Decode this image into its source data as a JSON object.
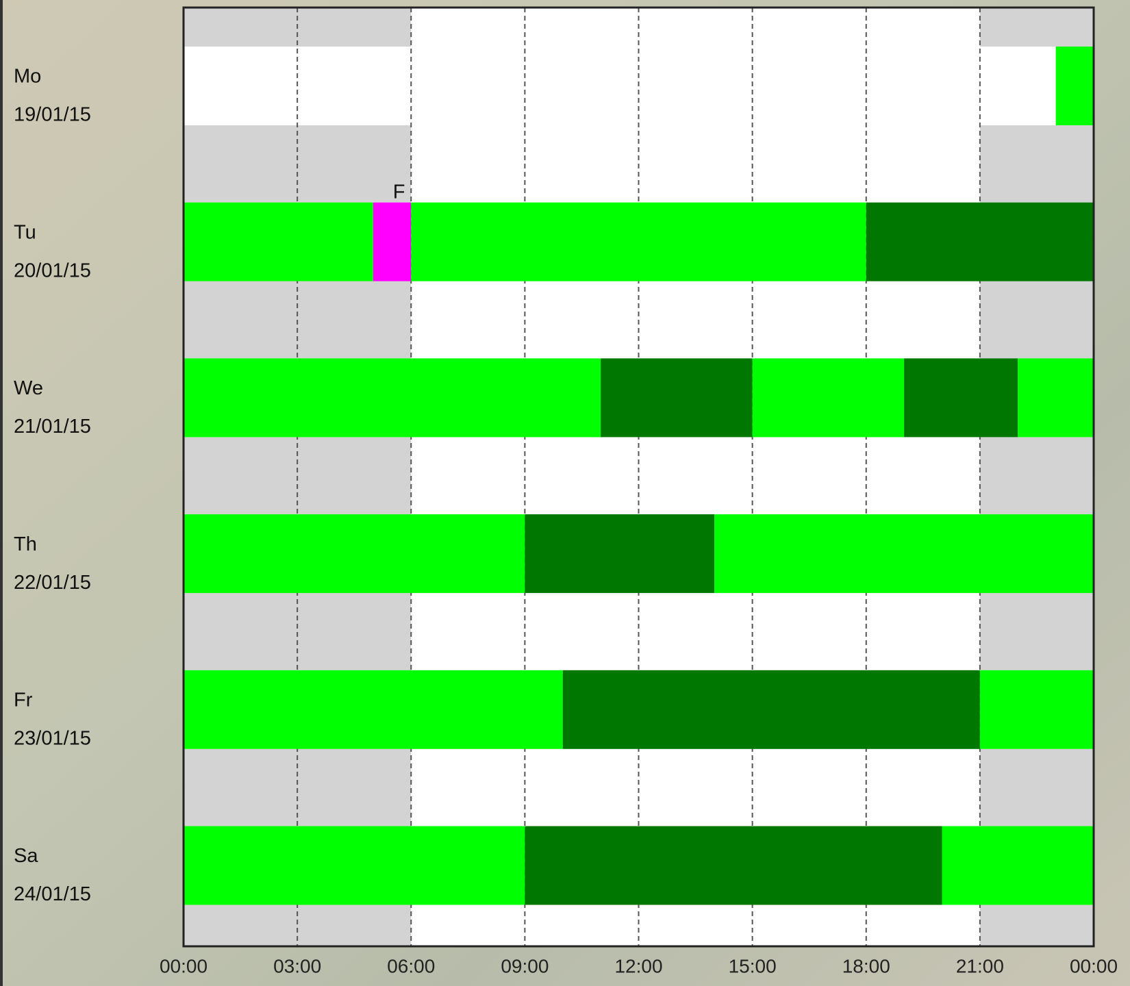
{
  "chart_data": {
    "type": "timeline",
    "xlim": [
      0,
      24
    ],
    "xticks": [
      {
        "value": 0,
        "label": "00:00"
      },
      {
        "value": 3,
        "label": "03:00"
      },
      {
        "value": 6,
        "label": "06:00"
      },
      {
        "value": 9,
        "label": "09:00"
      },
      {
        "value": 12,
        "label": "12:00"
      },
      {
        "value": 15,
        "label": "15:00"
      },
      {
        "value": 18,
        "label": "18:00"
      },
      {
        "value": 21,
        "label": "21:00"
      },
      {
        "value": 24,
        "label": "00:00"
      }
    ],
    "grid": true,
    "shaded_hours": [
      [
        0,
        6
      ],
      [
        21,
        24
      ]
    ],
    "shade_color": "#d3d3d3",
    "rows": [
      {
        "day": "Mo",
        "date": "19/01/15",
        "segments": [
          {
            "start": 23,
            "end": 24,
            "color": "#00ff00"
          }
        ]
      },
      {
        "day": "Tu",
        "date": "20/01/15",
        "segments": [
          {
            "start": 0,
            "end": 5,
            "color": "#00ff00"
          },
          {
            "start": 5,
            "end": 6,
            "color": "#ff00ff",
            "label": "F"
          },
          {
            "start": 6,
            "end": 18,
            "color": "#00ff00"
          },
          {
            "start": 18,
            "end": 24,
            "color": "#007800"
          }
        ]
      },
      {
        "day": "We",
        "date": "21/01/15",
        "segments": [
          {
            "start": 0,
            "end": 11,
            "color": "#00ff00"
          },
          {
            "start": 11,
            "end": 15,
            "color": "#007800"
          },
          {
            "start": 15,
            "end": 19,
            "color": "#00ff00"
          },
          {
            "start": 19,
            "end": 22,
            "color": "#007800"
          },
          {
            "start": 22,
            "end": 24,
            "color": "#00ff00"
          }
        ]
      },
      {
        "day": "Th",
        "date": "22/01/15",
        "segments": [
          {
            "start": 0,
            "end": 9,
            "color": "#00ff00"
          },
          {
            "start": 9,
            "end": 14,
            "color": "#007800"
          },
          {
            "start": 14,
            "end": 24,
            "color": "#00ff00"
          }
        ]
      },
      {
        "day": "Fr",
        "date": "23/01/15",
        "segments": [
          {
            "start": 0,
            "end": 10,
            "color": "#00ff00"
          },
          {
            "start": 10,
            "end": 21,
            "color": "#007800"
          },
          {
            "start": 21,
            "end": 24,
            "color": "#00ff00"
          }
        ]
      },
      {
        "day": "Sa",
        "date": "24/01/15",
        "segments": [
          {
            "start": 0,
            "end": 9,
            "color": "#00ff00"
          },
          {
            "start": 9,
            "end": 20,
            "color": "#007800"
          },
          {
            "start": 20,
            "end": 24,
            "color": "#00ff00"
          }
        ]
      }
    ]
  }
}
